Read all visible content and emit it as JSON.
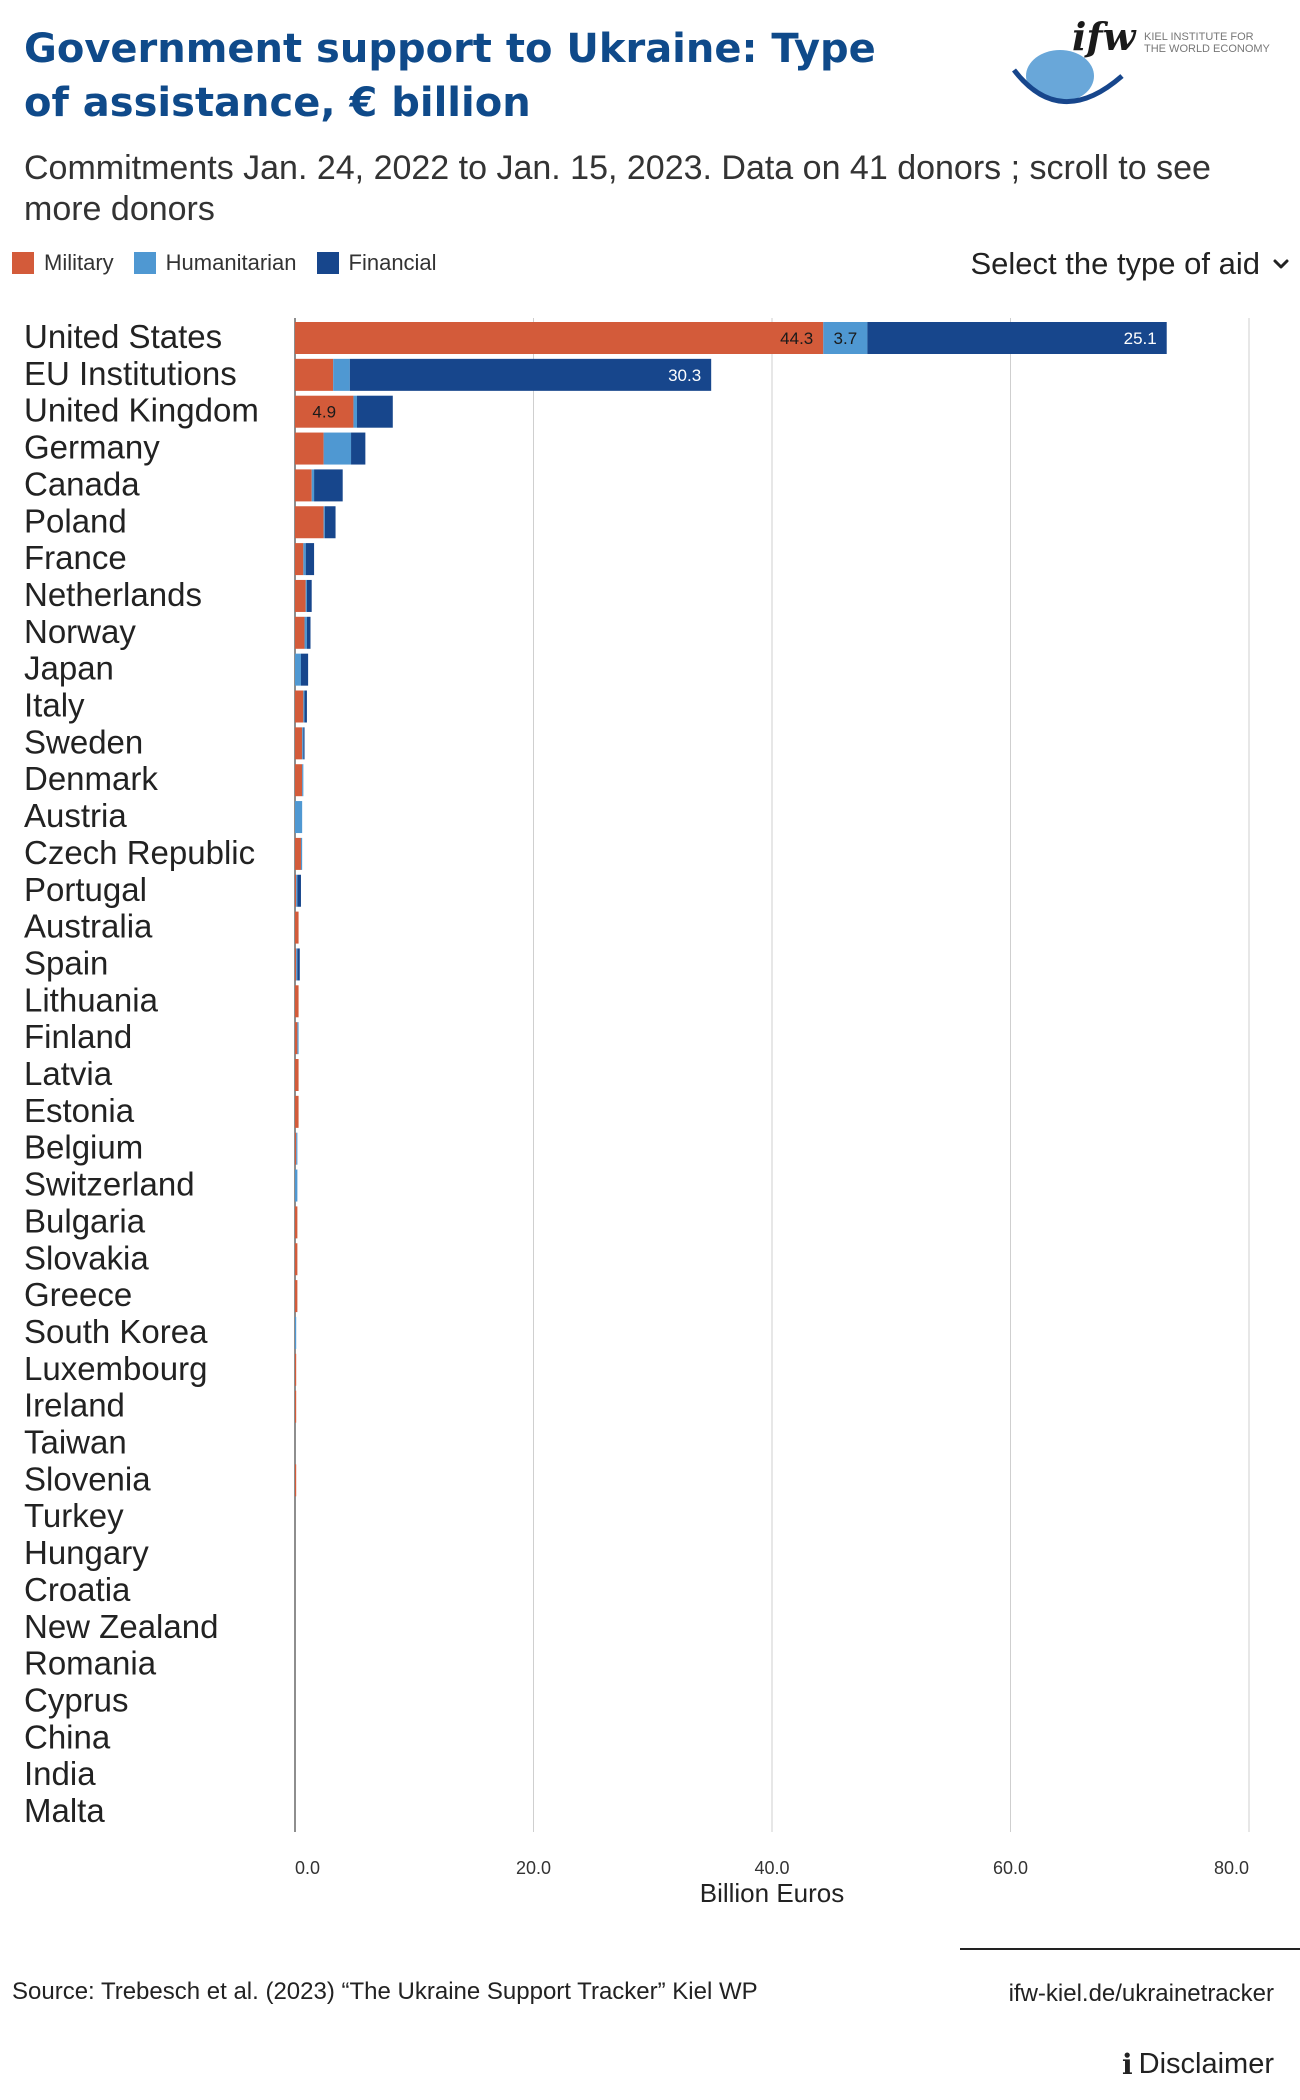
{
  "header": {
    "title": "Government support to Ukraine: Type of assistance, € billion",
    "subtitle": "Commitments Jan. 24, 2022 to Jan. 15, 2023. Data on 41 donors ; scroll to see more donors",
    "logo_mark": "ifw",
    "logo_text_line1": "KIEL INSTITUTE FOR",
    "logo_text_line2": "THE WORLD ECONOMY"
  },
  "legend": [
    {
      "label": "Military",
      "color": "#d35b3a"
    },
    {
      "label": "Humanitarian",
      "color": "#4f98d2"
    },
    {
      "label": "Financial",
      "color": "#17468c"
    }
  ],
  "controls": {
    "select_label": "Select the type of aid",
    "select_icon": "chevron-down-icon"
  },
  "chart_data": {
    "type": "bar",
    "orientation": "horizontal",
    "stacked": true,
    "categories": [
      "United States",
      "EU Institutions",
      "United Kingdom",
      "Germany",
      "Canada",
      "Poland",
      "France",
      "Netherlands",
      "Norway",
      "Japan",
      "Italy",
      "Sweden",
      "Denmark",
      "Austria",
      "Czech Republic",
      "Portugal",
      "Australia",
      "Spain",
      "Lithuania",
      "Finland",
      "Latvia",
      "Estonia",
      "Belgium",
      "Switzerland",
      "Bulgaria",
      "Slovakia",
      "Greece",
      "South Korea",
      "Luxembourg",
      "Ireland",
      "Taiwan",
      "Slovenia",
      "Turkey",
      "Hungary",
      "Croatia",
      "New Zealand",
      "Romania",
      "Cyprus",
      "China",
      "India",
      "Malta"
    ],
    "series": [
      {
        "name": "Military",
        "color": "#d35b3a",
        "values": [
          44.3,
          3.2,
          4.9,
          2.4,
          1.4,
          2.4,
          0.7,
          0.9,
          0.8,
          0.0,
          0.7,
          0.6,
          0.6,
          0.0,
          0.5,
          0.1,
          0.3,
          0.1,
          0.3,
          0.2,
          0.3,
          0.3,
          0.1,
          0.0,
          0.2,
          0.2,
          0.2,
          0.0,
          0.1,
          0.1,
          0.0,
          0.1,
          0.0,
          0.0,
          0.0,
          0.0,
          0.0,
          0.0,
          0.0,
          0.0,
          0.0
        ]
      },
      {
        "name": "Humanitarian",
        "color": "#4f98d2",
        "values": [
          3.7,
          1.4,
          0.3,
          2.3,
          0.2,
          0.1,
          0.2,
          0.1,
          0.2,
          0.5,
          0.1,
          0.1,
          0.1,
          0.6,
          0.1,
          0.1,
          0.0,
          0.1,
          0.0,
          0.1,
          0.0,
          0.0,
          0.1,
          0.2,
          0.0,
          0.0,
          0.0,
          0.1,
          0.0,
          0.0,
          0.0,
          0.0,
          0.0,
          0.0,
          0.0,
          0.0,
          0.0,
          0.0,
          0.0,
          0.0,
          0.0
        ]
      },
      {
        "name": "Financial",
        "color": "#17468c",
        "values": [
          25.1,
          30.3,
          3.0,
          1.2,
          2.4,
          0.9,
          0.7,
          0.4,
          0.3,
          0.6,
          0.2,
          0.1,
          0.0,
          0.0,
          0.0,
          0.3,
          0.0,
          0.2,
          0.0,
          0.0,
          0.0,
          0.0,
          0.0,
          0.0,
          0.0,
          0.0,
          0.0,
          0.0,
          0.0,
          0.0,
          0.0,
          0.0,
          0.0,
          0.0,
          0.0,
          0.0,
          0.0,
          0.0,
          0.0,
          0.0,
          0.0
        ]
      }
    ],
    "data_labels": [
      {
        "category": "United States",
        "series": "Military",
        "text": "44.3"
      },
      {
        "category": "United States",
        "series": "Humanitarian",
        "text": "3.7"
      },
      {
        "category": "United States",
        "series": "Financial",
        "text": "25.1"
      },
      {
        "category": "EU Institutions",
        "series": "Financial",
        "text": "30.3"
      },
      {
        "category": "United Kingdom",
        "series": "Military",
        "text": "4.9"
      }
    ],
    "xlabel": "Billion Euros",
    "xlim": [
      0,
      80
    ],
    "xticks": [
      "0.0",
      "20.0",
      "40.0",
      "60.0",
      "80.0"
    ],
    "grid": true,
    "legend_placement": "top-left"
  },
  "footer": {
    "source": "Source: Trebesch et al. (2023) “The Ukraine Support Tracker” Kiel WP",
    "link": "ifw-kiel.de/ukrainetracker",
    "disclaimer": "Disclaimer"
  }
}
